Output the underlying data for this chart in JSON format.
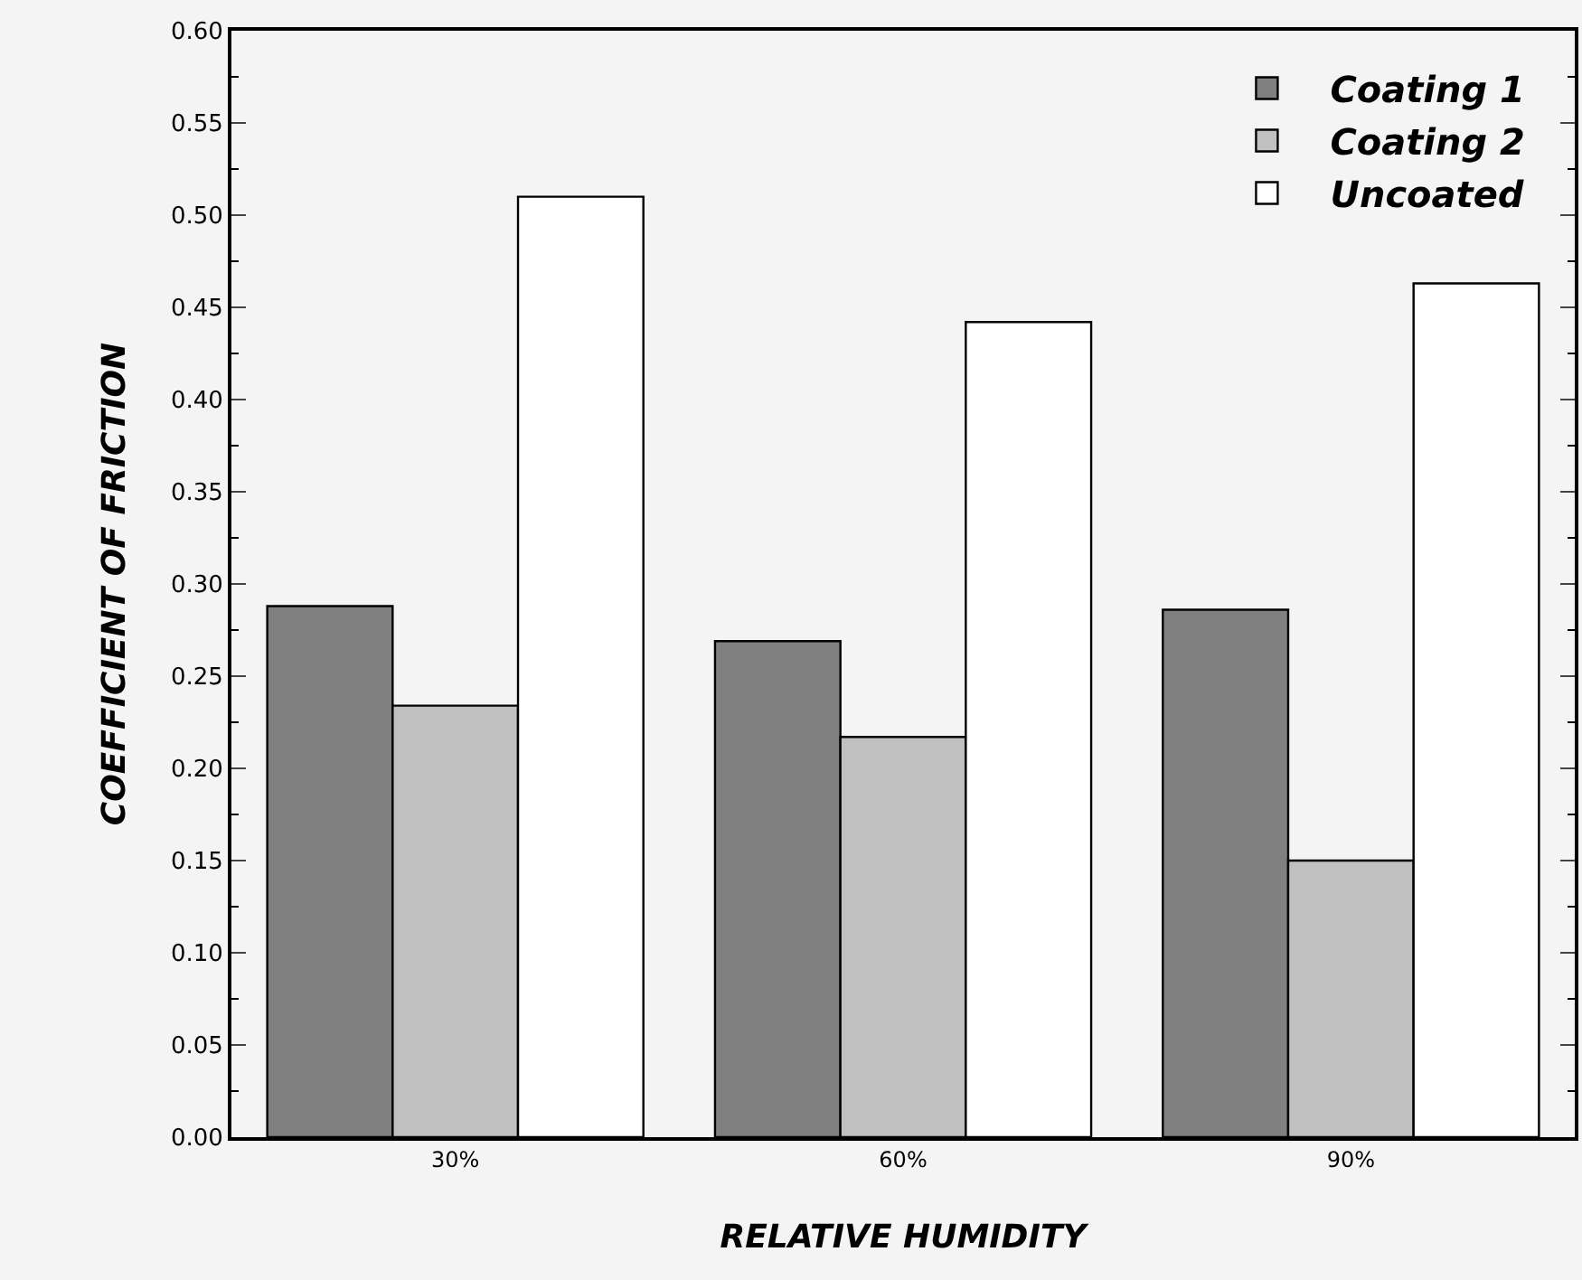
{
  "chart_data": {
    "type": "bar",
    "xlabel": "RELATIVE HUMIDITY",
    "ylabel": "COEFFICIENT OF FRICTION",
    "categories": [
      "30%",
      "60%",
      "90%"
    ],
    "series": [
      {
        "name": "Coating 1",
        "color": "#808080",
        "values": [
          0.288,
          0.269,
          0.286
        ]
      },
      {
        "name": "Coating 2",
        "color": "#c0c0c0",
        "values": [
          0.234,
          0.217,
          0.15
        ]
      },
      {
        "name": "Uncoated",
        "color": "#ffffff",
        "values": [
          0.51,
          0.442,
          0.463
        ]
      }
    ],
    "ylim": [
      0,
      0.6
    ],
    "yticks": [
      {
        "value": 0,
        "label": "0.00"
      },
      {
        "value": 0.05,
        "label": "0.05"
      },
      {
        "value": 0.1,
        "label": "0.10"
      },
      {
        "value": 0.15,
        "label": "0.15"
      },
      {
        "value": 0.2,
        "label": "0.20"
      },
      {
        "value": 0.25,
        "label": "0.25"
      },
      {
        "value": 0.3,
        "label": "0.30"
      },
      {
        "value": 0.35,
        "label": "0.35"
      },
      {
        "value": 0.4,
        "label": "0.40"
      },
      {
        "value": 0.45,
        "label": "0.45"
      },
      {
        "value": 0.5,
        "label": "0.50"
      },
      {
        "value": 0.55,
        "label": "0.55"
      },
      {
        "value": 0.6,
        "label": "0.60"
      }
    ],
    "grid": false,
    "legend": "top right"
  }
}
